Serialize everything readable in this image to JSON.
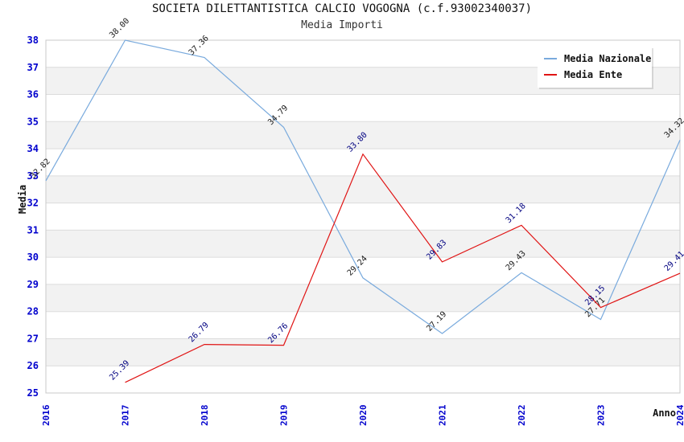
{
  "chart_data": {
    "type": "line",
    "title": "SOCIETA DILETTANTISTICA CALCIO VOGOGNA (c.f.93002340037)",
    "subtitle": "Media Importi",
    "xlabel": "Anno",
    "ylabel": "Media",
    "x": [
      2016,
      2017,
      2018,
      2019,
      2020,
      2021,
      2022,
      2023,
      2024
    ],
    "ylim": [
      25,
      38
    ],
    "grid": true,
    "legend_position": "top-right",
    "series": [
      {
        "name": "Media Nazionale",
        "color": "#79AADD",
        "label_color": "#1a1a1a",
        "values": [
          32.82,
          38.0,
          37.36,
          34.79,
          29.24,
          27.19,
          29.43,
          27.71,
          34.32
        ]
      },
      {
        "name": "Media Ente",
        "color": "#E01414",
        "label_color": "#000080",
        "values": [
          null,
          25.39,
          26.79,
          26.76,
          33.8,
          29.83,
          31.18,
          28.15,
          29.41
        ]
      }
    ],
    "colors": {
      "tick_label": "#0000CD",
      "grid_line": "#DCDCDC",
      "band": "#F2F2F2",
      "frame": "#C9C9C9"
    }
  }
}
